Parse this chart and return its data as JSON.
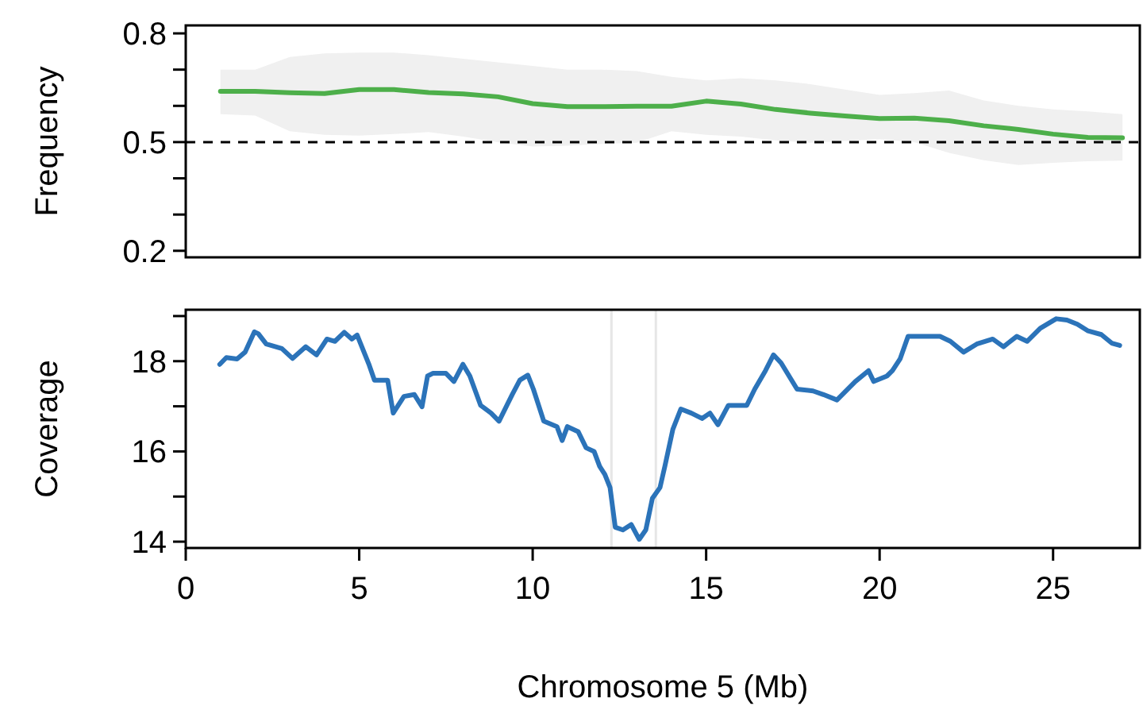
{
  "chart_data": [
    {
      "type": "line",
      "ylabel": "Frequency",
      "xlim": [
        0,
        27.5
      ],
      "ylim": [
        0.182,
        0.822
      ],
      "yticks": [
        0.2,
        {
          "value": 0.3,
          "label": null
        },
        {
          "value": 0.4,
          "label": null
        },
        0.5,
        {
          "value": 0.6,
          "label": null
        },
        {
          "value": 0.7,
          "label": null
        },
        0.8
      ],
      "tick_labels": "y",
      "grid": false,
      "x": [
        1,
        2,
        3,
        4,
        5,
        6,
        7,
        8,
        9,
        10,
        11,
        12,
        13,
        14,
        15,
        16,
        17,
        18,
        19,
        20,
        21,
        22,
        23,
        24,
        25,
        26,
        27
      ],
      "series": [
        {
          "color": "#4daf4a",
          "line_style": "solid",
          "values": [
            0.64,
            0.64,
            0.636,
            0.634,
            0.645,
            0.645,
            0.637,
            0.633,
            0.625,
            0.606,
            0.598,
            0.598,
            0.599,
            0.599,
            0.613,
            0.605,
            0.59,
            0.58,
            0.572,
            0.565,
            0.566,
            0.559,
            0.545,
            0.535,
            0.522,
            0.513,
            0.512
          ],
          "upper": [
            0.7,
            0.7,
            0.735,
            0.745,
            0.747,
            0.747,
            0.74,
            0.73,
            0.72,
            0.71,
            0.7,
            0.7,
            0.696,
            0.68,
            0.67,
            0.676,
            0.67,
            0.66,
            0.645,
            0.63,
            0.635,
            0.642,
            0.615,
            0.6,
            0.59,
            0.585,
            0.577
          ],
          "lower": [
            0.577,
            0.573,
            0.53,
            0.52,
            0.518,
            0.522,
            0.528,
            0.515,
            0.5,
            0.488,
            0.49,
            0.495,
            0.498,
            0.53,
            0.52,
            0.515,
            0.505,
            0.498,
            0.503,
            0.508,
            0.5,
            0.47,
            0.45,
            0.437,
            0.443,
            0.447,
            0.449
          ]
        }
      ],
      "ref_lines": [
        {
          "axis": "y",
          "value": 0.5,
          "color": "#000000",
          "line_style": "dashed"
        }
      ]
    },
    {
      "type": "line",
      "ylabel": "Coverage",
      "xlabel": "Chromosome 5 (Mb)",
      "xlim": [
        0,
        27.5
      ],
      "xticks": [
        0,
        5,
        10,
        15,
        20,
        25
      ],
      "ylim": [
        13.86,
        19.14
      ],
      "yticks": [
        14,
        {
          "value": 15,
          "label": null
        },
        16,
        {
          "value": 17,
          "label": null
        },
        18,
        {
          "value": 19,
          "label": null
        }
      ],
      "grid": false,
      "x": [
        0.98,
        1.17,
        1.48,
        1.71,
        1.98,
        2.09,
        2.32,
        2.77,
        3.08,
        3.46,
        3.77,
        4.07,
        4.3,
        4.57,
        4.79,
        4.94,
        5.29,
        5.44,
        5.82,
        5.98,
        6.29,
        6.59,
        6.81,
        6.97,
        7.12,
        7.5,
        7.73,
        7.99,
        8.19,
        8.5,
        8.8,
        9.03,
        9.41,
        9.63,
        9.86,
        10.02,
        10.32,
        10.7,
        10.85,
        11.0,
        11.31,
        11.54,
        11.77,
        11.93,
        12.08,
        12.23,
        12.38,
        12.6,
        12.84,
        13.07,
        13.26,
        13.45,
        13.67,
        13.81,
        14.04,
        14.27,
        14.57,
        14.88,
        15.11,
        15.34,
        15.64,
        16.17,
        16.4,
        16.71,
        16.94,
        17.16,
        17.62,
        18.08,
        18.38,
        18.77,
        19.3,
        19.68,
        19.83,
        20.21,
        20.37,
        20.59,
        20.82,
        21.28,
        21.74,
        22.04,
        22.42,
        22.8,
        23.26,
        23.57,
        23.95,
        24.25,
        24.63,
        25.09,
        25.4,
        25.7,
        26.01,
        26.39,
        26.69,
        26.92
      ],
      "series": [
        {
          "color": "#2b73b9",
          "line_style": "solid",
          "values": [
            17.93,
            18.08,
            18.05,
            18.2,
            18.65,
            18.61,
            18.38,
            18.28,
            18.06,
            18.32,
            18.14,
            18.49,
            18.44,
            18.64,
            18.49,
            18.58,
            17.91,
            17.58,
            17.58,
            16.85,
            17.22,
            17.26,
            16.99,
            17.67,
            17.73,
            17.73,
            17.55,
            17.93,
            17.67,
            17.02,
            16.85,
            16.67,
            17.26,
            17.58,
            17.69,
            17.38,
            16.67,
            16.55,
            16.24,
            16.55,
            16.44,
            16.08,
            16.0,
            15.67,
            15.49,
            15.2,
            14.32,
            14.26,
            14.38,
            14.05,
            14.26,
            14.96,
            15.2,
            15.67,
            16.49,
            16.94,
            16.85,
            16.73,
            16.85,
            16.59,
            17.02,
            17.02,
            17.38,
            17.79,
            18.14,
            17.96,
            17.38,
            17.34,
            17.26,
            17.14,
            17.55,
            17.79,
            17.55,
            17.67,
            17.79,
            18.05,
            18.55,
            18.55,
            18.55,
            18.44,
            18.2,
            18.38,
            18.49,
            18.32,
            18.55,
            18.44,
            18.73,
            18.94,
            18.91,
            18.82,
            18.67,
            18.59,
            18.4,
            18.35
          ]
        }
      ],
      "ref_lines": [
        {
          "axis": "x",
          "value": 12.27,
          "color": "#e6e6e6",
          "line_style": "solid"
        },
        {
          "axis": "x",
          "value": 13.55,
          "color": "#e6e6e6",
          "line_style": "solid"
        }
      ]
    }
  ]
}
